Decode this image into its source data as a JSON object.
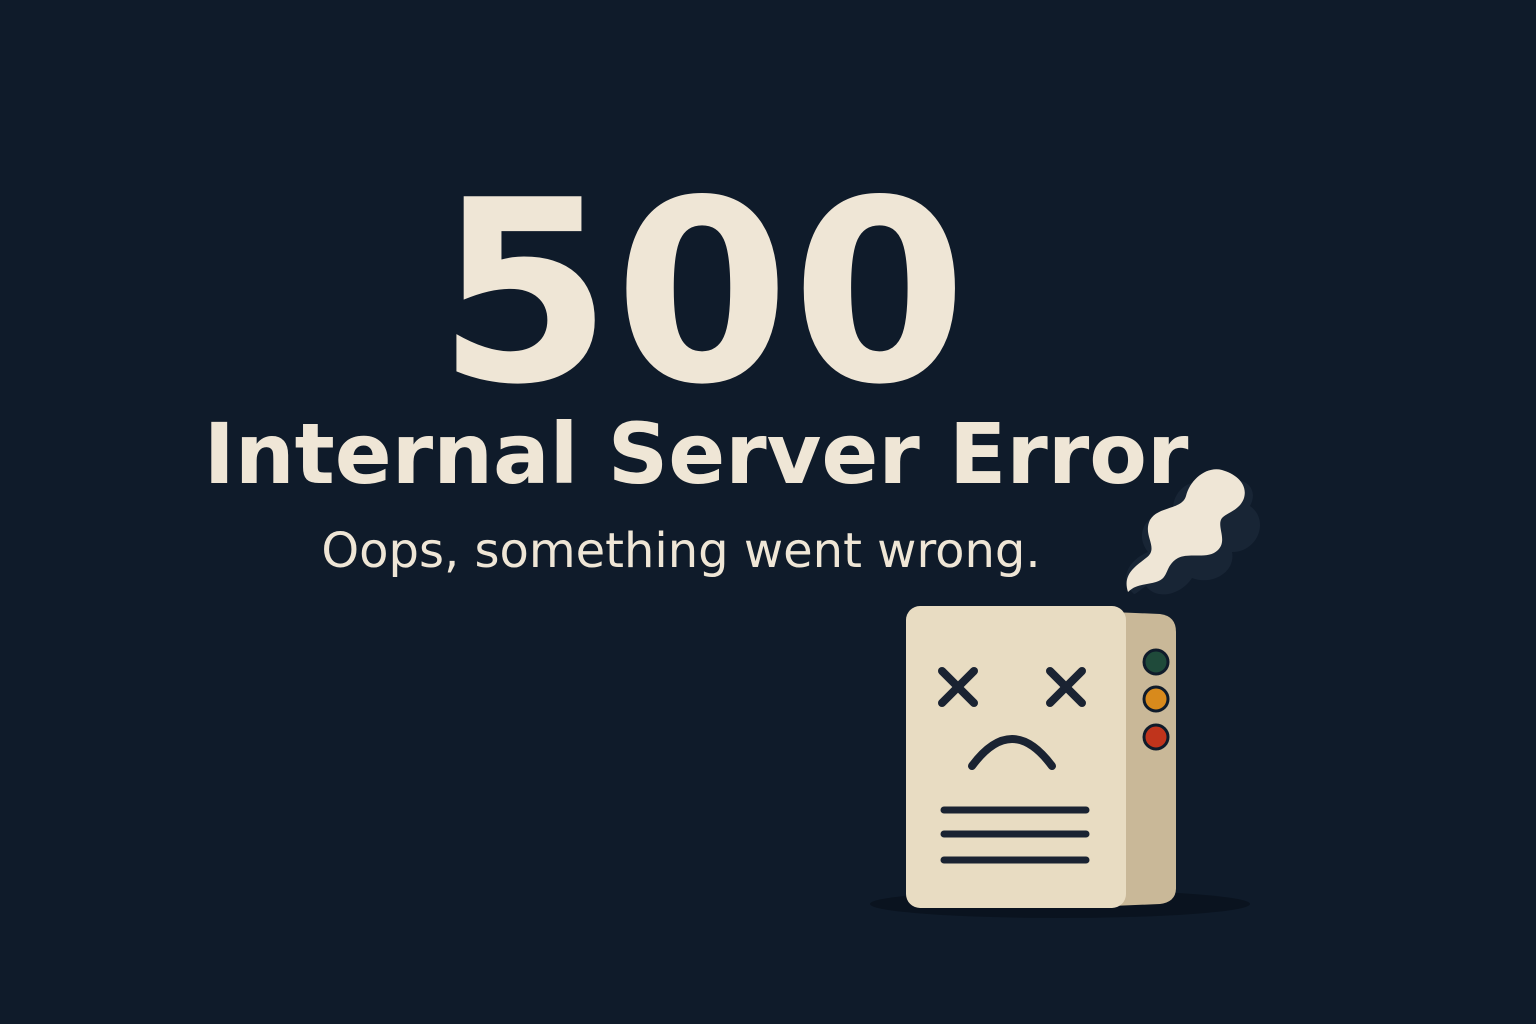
{
  "error": {
    "code": "500",
    "title": "Internal Server Error",
    "message": "Oops, something went wrong."
  },
  "illustration": {
    "icon": "broken-server-icon",
    "led_colors": [
      "#1f4a3a",
      "#d88a1c",
      "#c0341c"
    ]
  },
  "colors": {
    "background": "#0f1b2a",
    "text": "#efe6d6",
    "server_body": "#e8dcc2",
    "server_side": "#c9b898"
  }
}
